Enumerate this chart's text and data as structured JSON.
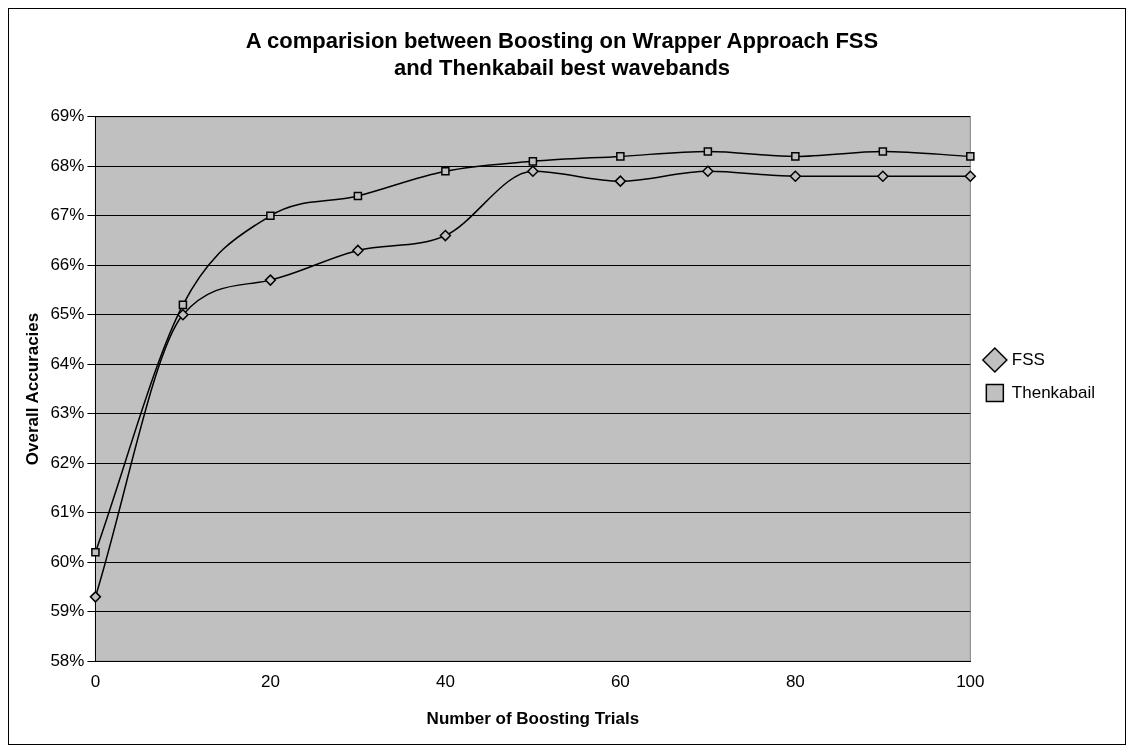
{
  "chart_data": {
    "type": "line",
    "title": "A comparision between Boosting on Wrapper Approach FSS\nand Thenkabail best wavebands",
    "xlabel": "Number of Boosting Trials",
    "ylabel": "Overall Accuracies",
    "categories": [
      "0",
      null,
      "20",
      null,
      "40",
      null,
      "60",
      null,
      "80",
      null,
      "100"
    ],
    "series": [
      {
        "name": "FSS",
        "color": "#000000",
        "marker": "diamond",
        "values": [
          59.3,
          65.0,
          65.7,
          66.3,
          66.6,
          67.9,
          67.7,
          67.9,
          67.8,
          67.8,
          67.8
        ]
      },
      {
        "name": "Thenkabail",
        "color": "#000000",
        "marker": "square",
        "values": [
          60.2,
          65.2,
          67.0,
          67.4,
          67.9,
          68.1,
          68.2,
          68.3,
          68.2,
          68.3,
          68.2
        ]
      }
    ],
    "ylim": [
      58,
      69
    ],
    "yticks": [
      {
        "value": 58,
        "label": "58%"
      },
      {
        "value": 59,
        "label": "59%"
      },
      {
        "value": 60,
        "label": "60%"
      },
      {
        "value": 61,
        "label": "61%"
      },
      {
        "value": 62,
        "label": "62%"
      },
      {
        "value": 63,
        "label": "63%"
      },
      {
        "value": 64,
        "label": "64%"
      },
      {
        "value": 65,
        "label": "65%"
      },
      {
        "value": 66,
        "label": "66%"
      },
      {
        "value": 67,
        "label": "67%"
      },
      {
        "value": 68,
        "label": "68%"
      },
      {
        "value": 69,
        "label": "69%"
      }
    ],
    "grid": "y",
    "legend": "right",
    "line_style": "solid"
  }
}
